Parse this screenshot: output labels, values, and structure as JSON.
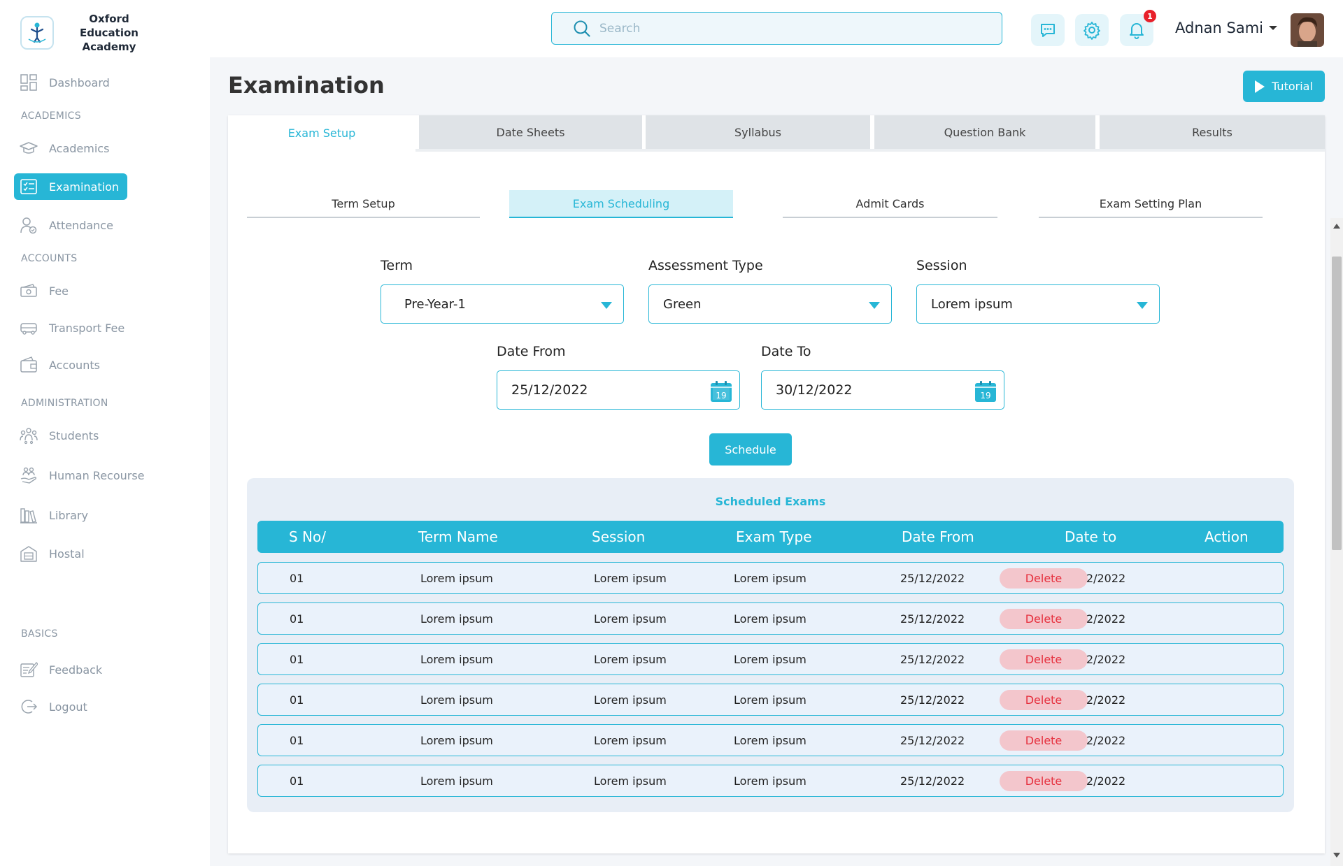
{
  "brand": {
    "name": "Oxford Education Academy"
  },
  "header": {
    "search_placeholder": "Search",
    "notification_count": "1",
    "user_name": "Adnan Sami"
  },
  "sidebar": {
    "dashboard": "Dashboard",
    "section_academics": "ACADEMICS",
    "academics": "Academics",
    "examination": "Examination",
    "attendance": "Attendance",
    "section_accounts": "ACCOUNTS",
    "fee": "Fee",
    "transport_fee": "Transport Fee",
    "accounts": "Accounts",
    "section_administration": "ADMINISTRATION",
    "students": "Students",
    "human_resource": "Human Recourse",
    "library": "Library",
    "hostal": "Hostal",
    "section_basics": "BASICS",
    "feedback": "Feedback",
    "logout": "Logout"
  },
  "page": {
    "title": "Examination",
    "tutorial_label": "Tutorial"
  },
  "tabs": [
    "Exam Setup",
    "Date Sheets",
    "Syllabus",
    "Question Bank",
    "Results"
  ],
  "subtabs": [
    "Term Setup",
    "Exam Scheduling",
    "Admit Cards",
    "Exam Setting Plan"
  ],
  "form": {
    "term_label": "Term",
    "term_value": "Pre-Year-1",
    "assessment_label": "Assessment Type",
    "assessment_value": "Green",
    "session_label": "Session",
    "session_value": "Lorem ipsum",
    "date_from_label": "Date From",
    "date_from_value": "25/12/2022",
    "date_to_label": "Date To",
    "date_to_value": "30/12/2022",
    "calendar_day": "19",
    "schedule_label": "Schedule"
  },
  "scheduled": {
    "title": "Scheduled Exams",
    "columns": [
      "S No/",
      "Term Name",
      "Session",
      "Exam Type",
      "Date From",
      "Date to",
      "Action"
    ],
    "rows": [
      {
        "sno": "01",
        "term": "Lorem ipsum",
        "session": "Lorem ipsum",
        "type": "Lorem ipsum",
        "from": "25/12/2022",
        "to": "30/12/2022",
        "action": "Delete"
      },
      {
        "sno": "01",
        "term": "Lorem ipsum",
        "session": "Lorem ipsum",
        "type": "Lorem ipsum",
        "from": "25/12/2022",
        "to": "30/12/2022",
        "action": "Delete"
      },
      {
        "sno": "01",
        "term": "Lorem ipsum",
        "session": "Lorem ipsum",
        "type": "Lorem ipsum",
        "from": "25/12/2022",
        "to": "30/12/2022",
        "action": "Delete"
      },
      {
        "sno": "01",
        "term": "Lorem ipsum",
        "session": "Lorem ipsum",
        "type": "Lorem ipsum",
        "from": "25/12/2022",
        "to": "30/12/2022",
        "action": "Delete"
      },
      {
        "sno": "01",
        "term": "Lorem ipsum",
        "session": "Lorem ipsum",
        "type": "Lorem ipsum",
        "from": "25/12/2022",
        "to": "30/12/2022",
        "action": "Delete"
      },
      {
        "sno": "01",
        "term": "Lorem ipsum",
        "session": "Lorem ipsum",
        "type": "Lorem ipsum",
        "from": "25/12/2022",
        "to": "30/12/2022",
        "action": "Delete"
      }
    ]
  },
  "colors": {
    "accent": "#27b6d6",
    "danger": "#e6303e",
    "danger_bg": "#f3c6cc"
  }
}
